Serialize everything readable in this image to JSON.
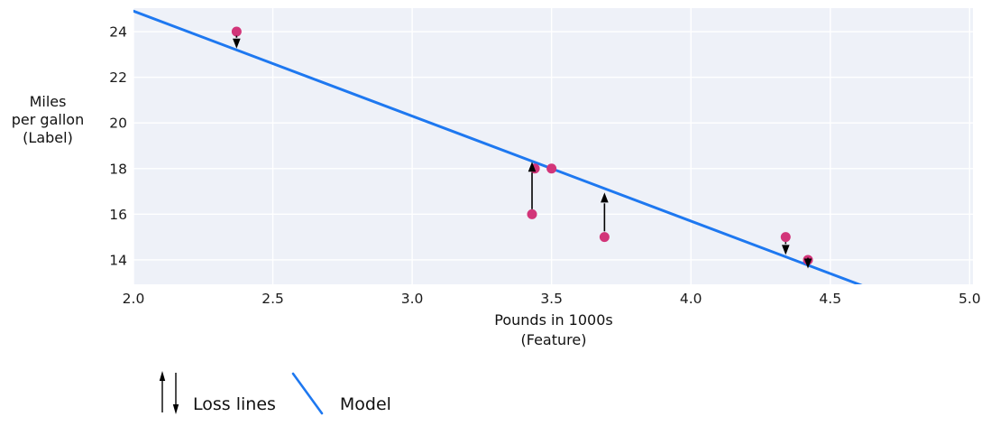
{
  "chart_data": {
    "type": "scatter",
    "title": "",
    "xlabel": "Pounds in 1000s\n(Feature)",
    "ylabel": "Miles\nper gallon\n(Label)",
    "xlim": [
      2.0,
      5.012
    ],
    "ylim": [
      12.93,
      25.03
    ],
    "grid": true,
    "x_ticks": [
      2.0,
      2.5,
      3.0,
      3.5,
      4.0,
      4.5,
      5.0
    ],
    "x_tick_labels": [
      "2.0",
      "2.5",
      "3.0",
      "3.5",
      "4.0",
      "4.5",
      "5.0"
    ],
    "y_ticks": [
      14,
      16,
      18,
      20,
      22,
      24
    ],
    "y_tick_labels": [
      "14",
      "16",
      "18",
      "20",
      "22",
      "24"
    ],
    "points": [
      {
        "x": 2.37,
        "y": 24
      },
      {
        "x": 3.43,
        "y": 16
      },
      {
        "x": 3.44,
        "y": 18
      },
      {
        "x": 3.5,
        "y": 18
      },
      {
        "x": 3.69,
        "y": 15
      },
      {
        "x": 4.34,
        "y": 15
      },
      {
        "x": 4.42,
        "y": 14
      }
    ],
    "model_line": {
      "x1": 2.0,
      "y1": 24.9,
      "x2": 4.7,
      "y2": 12.48
    },
    "loss_arrows": [
      {
        "x": 2.37,
        "from_y": 23.82,
        "to_y": 23.26,
        "direction": "down"
      },
      {
        "x": 3.43,
        "from_y": 16.22,
        "to_y": 18.3,
        "direction": "up"
      },
      {
        "x": 3.69,
        "from_y": 15.25,
        "to_y": 16.95,
        "direction": "up"
      },
      {
        "x": 4.34,
        "from_y": 14.78,
        "to_y": 14.22,
        "direction": "down"
      },
      {
        "x": 4.42,
        "from_y": 13.9,
        "to_y": 13.62,
        "direction": "down"
      }
    ],
    "colors": {
      "plot_bg": "#eef1f8",
      "grid": "#ffffff",
      "model_line": "#1e78f0",
      "point": "#d23579",
      "arrow": "#000000",
      "text": "#1a1a1a"
    }
  },
  "legend": {
    "loss_label": "Loss lines",
    "model_label": "Model"
  }
}
